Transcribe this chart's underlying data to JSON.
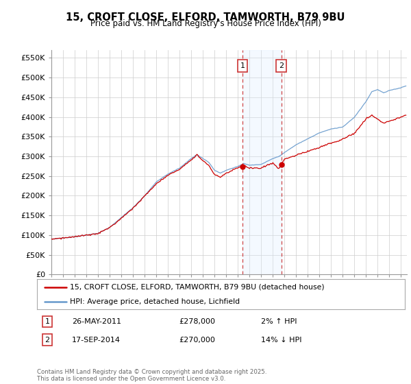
{
  "title": "15, CROFT CLOSE, ELFORD, TAMWORTH, B79 9BU",
  "subtitle": "Price paid vs. HM Land Registry's House Price Index (HPI)",
  "ylabel_ticks": [
    "£0",
    "£50K",
    "£100K",
    "£150K",
    "£200K",
    "£250K",
    "£300K",
    "£350K",
    "£400K",
    "£450K",
    "£500K",
    "£550K"
  ],
  "ytick_values": [
    0,
    50000,
    100000,
    150000,
    200000,
    250000,
    300000,
    350000,
    400000,
    450000,
    500000,
    550000
  ],
  "ylim": [
    0,
    570000
  ],
  "xlim_start": 1995.0,
  "xlim_end": 2025.5,
  "sale1_x": 2011.4,
  "sale1_y": 278000,
  "sale1_label": "1",
  "sale1_date": "26-MAY-2011",
  "sale1_price": "£278,000",
  "sale1_hpi": "2% ↑ HPI",
  "sale2_x": 2014.72,
  "sale2_y": 270000,
  "sale2_label": "2",
  "sale2_date": "17-SEP-2014",
  "sale2_price": "£270,000",
  "sale2_hpi": "14% ↓ HPI",
  "legend_line1": "15, CROFT CLOSE, ELFORD, TAMWORTH, B79 9BU (detached house)",
  "legend_line2": "HPI: Average price, detached house, Lichfield",
  "footer": "Contains HM Land Registry data © Crown copyright and database right 2025.\nThis data is licensed under the Open Government Licence v3.0.",
  "line_color_red": "#cc0000",
  "line_color_blue": "#6699cc",
  "shade_color": "#ddeeff",
  "vline_color": "#cc3333",
  "background_color": "#ffffff",
  "grid_color": "#cccccc"
}
